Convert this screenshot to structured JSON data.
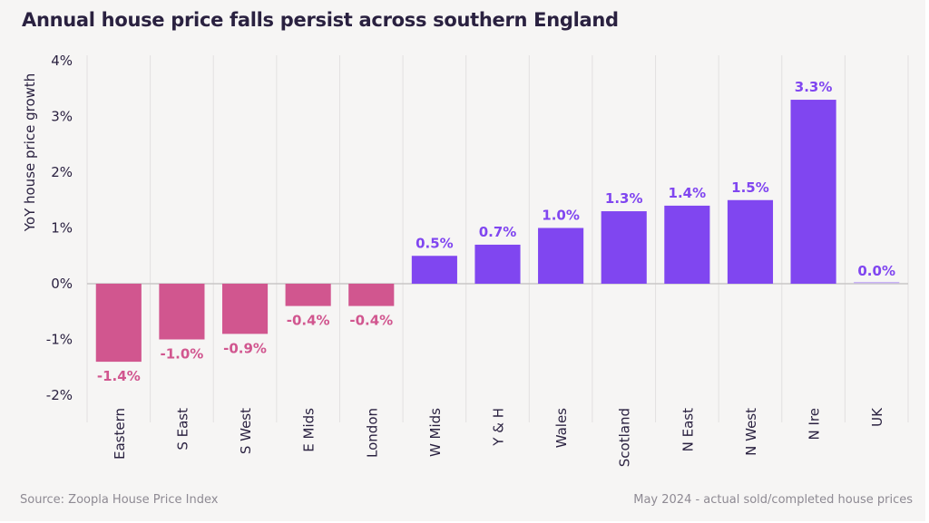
{
  "title": "Annual house price falls persist across southern England",
  "footer": {
    "source": "Source: Zoopla House Price Index",
    "note": "May 2024 - actual sold/completed house prices"
  },
  "colors": {
    "negative": "#d1568f",
    "positive": "#8046f0",
    "text": "#2a2140",
    "grid": "#e2e0e0",
    "zero_line": "#c9c6c6"
  },
  "chart_data": {
    "type": "bar",
    "title": "Annual house price falls persist across southern England",
    "xlabel": "",
    "ylabel": "YoY house price growth",
    "ylim": [
      -2,
      4
    ],
    "yticks": [
      4,
      3,
      2,
      1,
      0,
      -1,
      -2
    ],
    "ytick_labels": [
      "4%",
      "3%",
      "2%",
      "1%",
      "0%",
      "-1%",
      "-2%"
    ],
    "grid": "vertical",
    "categories": [
      "Eastern",
      "S East",
      "S West",
      "E Mids",
      "London",
      "W Mids",
      "Y & H",
      "Wales",
      "Scotland",
      "N East",
      "N West",
      "N Ire",
      "UK"
    ],
    "values": [
      -1.4,
      -1.0,
      -0.9,
      -0.4,
      -0.4,
      0.5,
      0.7,
      1.0,
      1.3,
      1.4,
      1.5,
      3.3,
      0.0
    ],
    "data_labels": [
      "-1.4%",
      "-1.0%",
      "-0.9%",
      "-0.4%",
      "-0.4%",
      "0.5%",
      "0.7%",
      "1.0%",
      "1.3%",
      "1.4%",
      "1.5%",
      "3.3%",
      "0.0%"
    ]
  }
}
